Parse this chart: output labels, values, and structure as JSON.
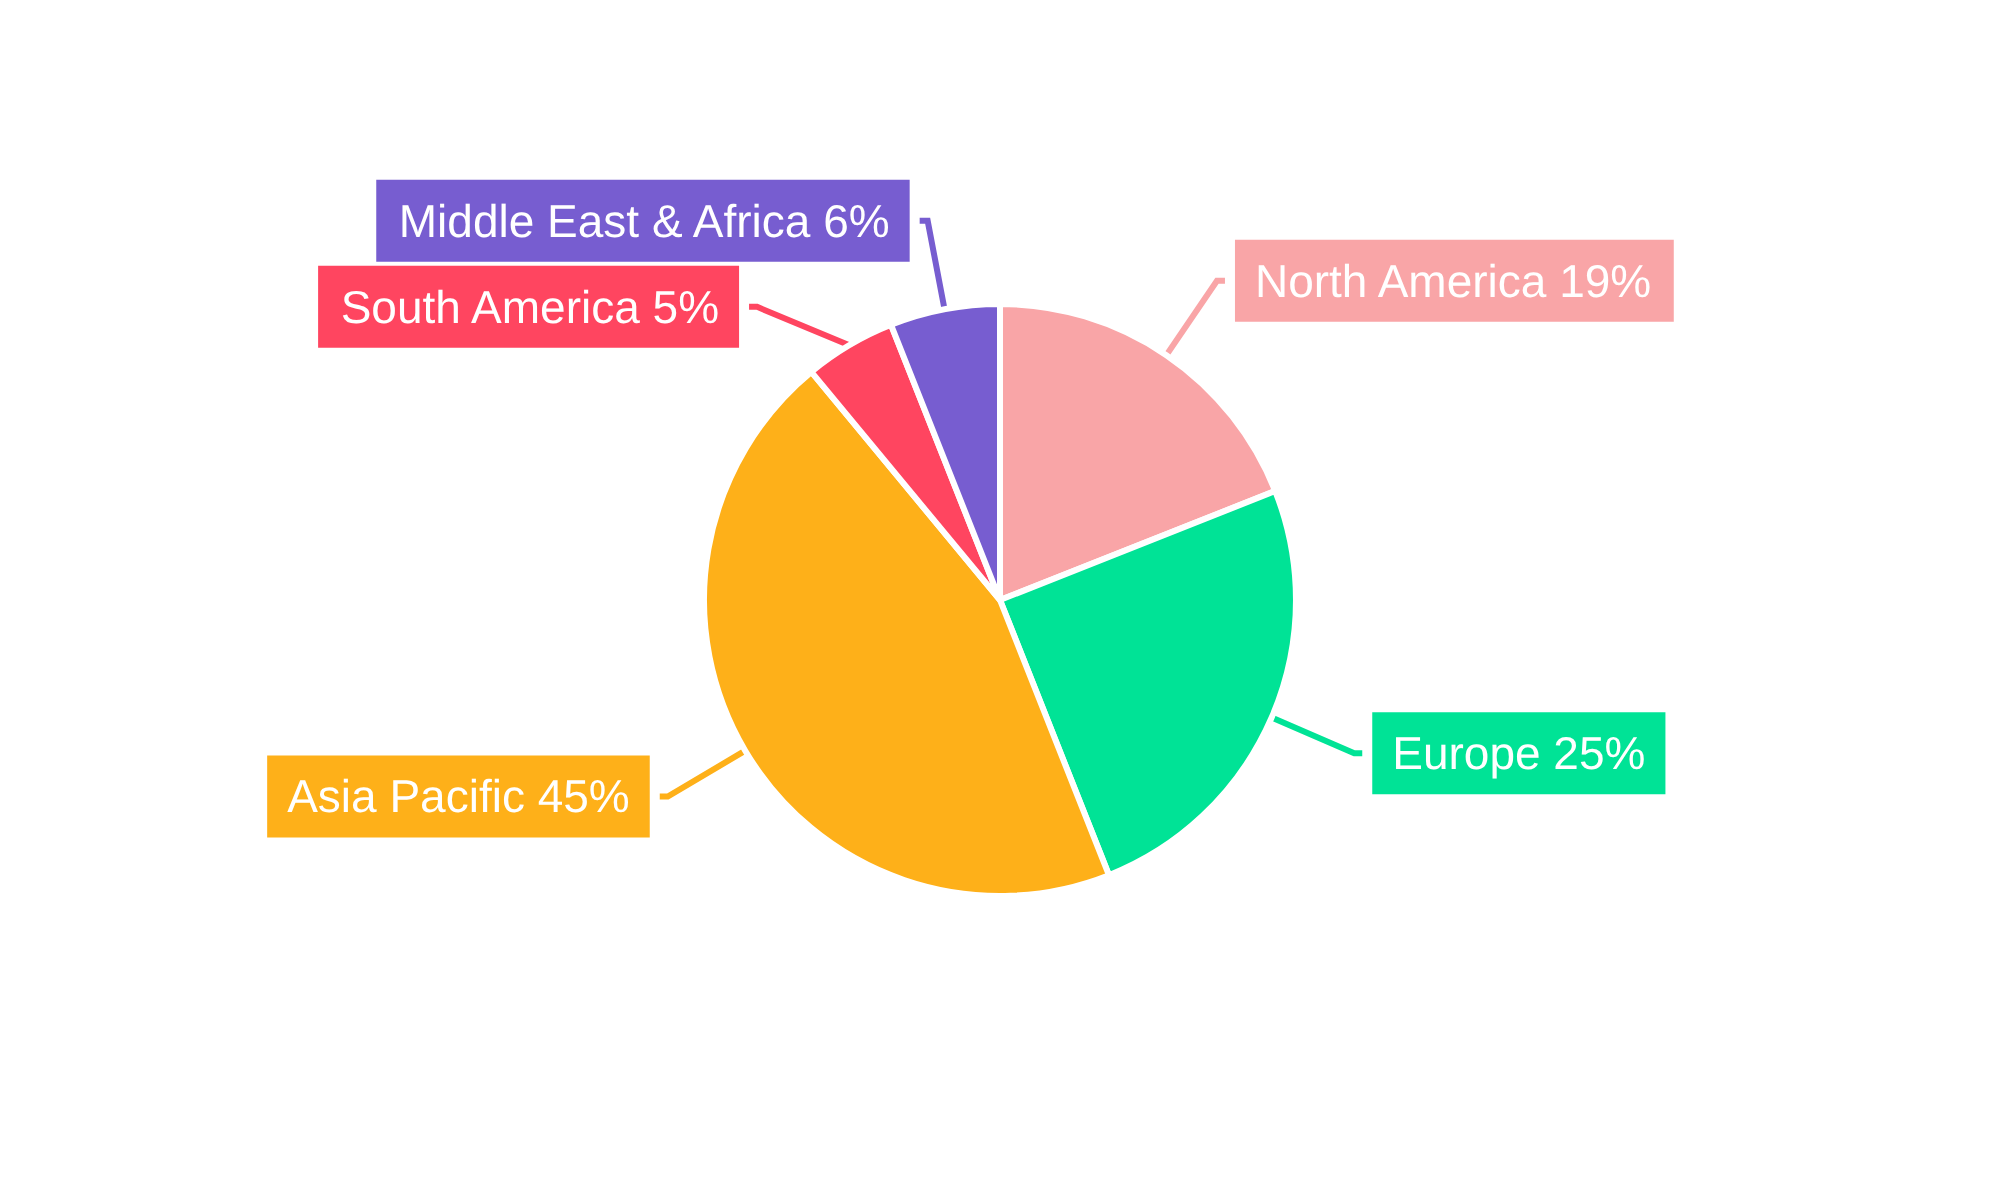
{
  "chart_data": {
    "type": "pie",
    "categories": [
      "North America",
      "Europe",
      "Asia Pacific",
      "South America",
      "Middle East & Africa"
    ],
    "values": [
      19,
      25,
      45,
      5,
      6
    ],
    "value_labels": [
      "19%",
      "25%",
      "45%",
      "5%",
      "6%"
    ],
    "colors": [
      "#f9a5a7",
      "#00e396",
      "#feb019",
      "#ff4560",
      "#775dd0"
    ]
  }
}
